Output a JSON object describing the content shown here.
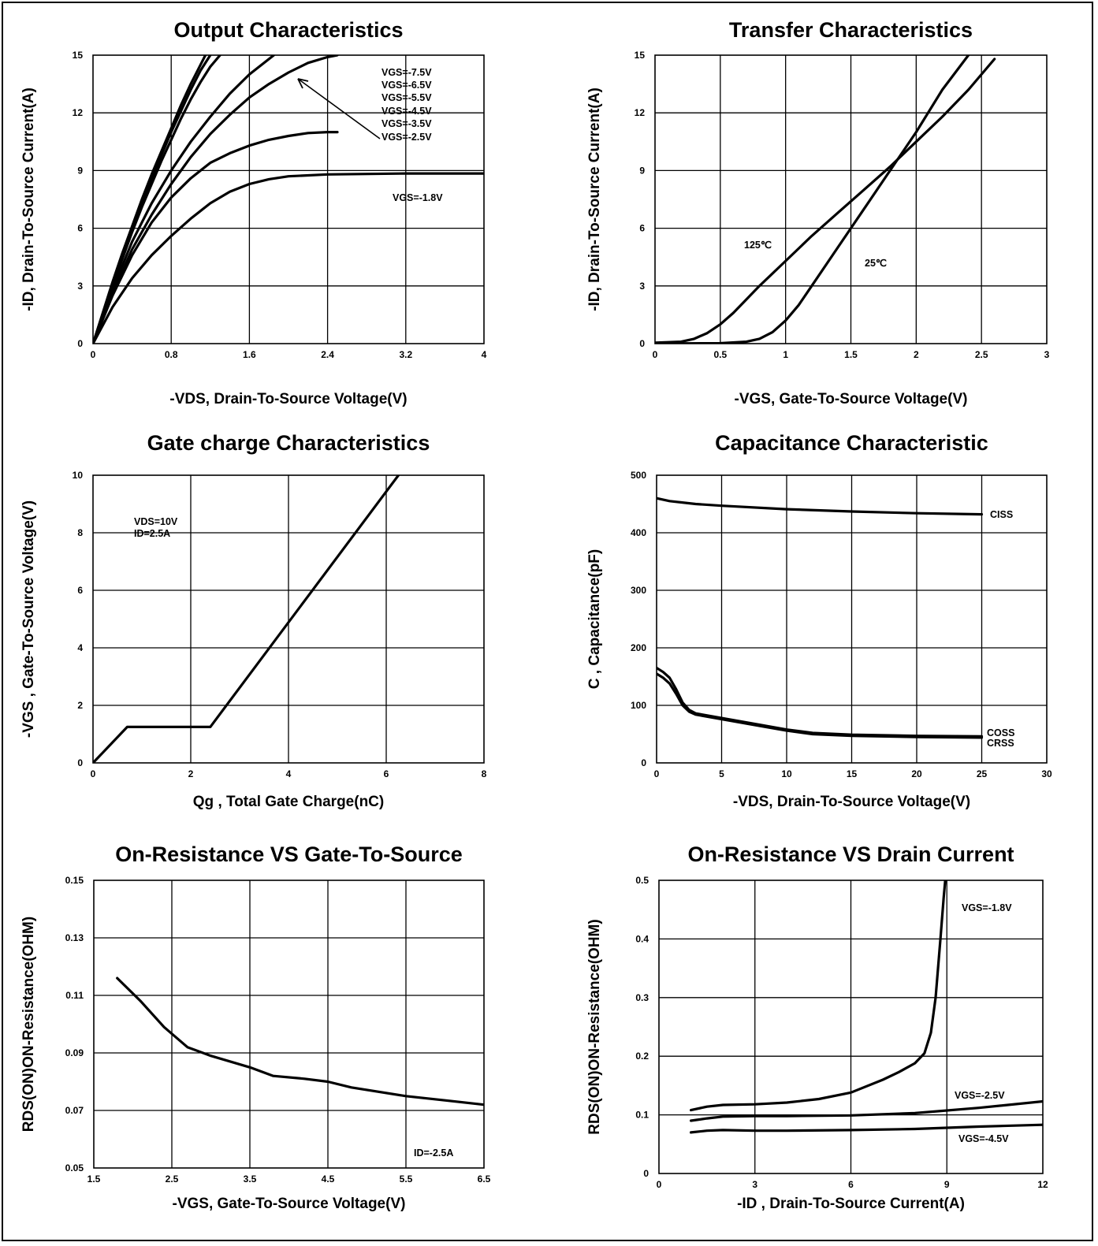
{
  "chart_data": [
    {
      "type": "line",
      "title": "Output Characteristics",
      "xlabel": "-VDS, Drain-To-Source Voltage(V)",
      "ylabel": "-ID, Drain-To-Source Current(A)",
      "xlim": [
        0,
        4
      ],
      "ylim": [
        0,
        15
      ],
      "xticks": [
        "0",
        "0.8",
        "1.6",
        "2.4",
        "3.2",
        "4"
      ],
      "yticks": [
        "0",
        "3",
        "6",
        "9",
        "12",
        "15"
      ],
      "grid": true,
      "annotations": [
        "VGS=-7.5V",
        "VGS=-6.5V",
        "VGS=-5.5V",
        "VGS=-4.5V",
        "VGS=-3.5V",
        "VGS=-2.5V",
        "VGS=-1.8V"
      ],
      "series": [
        {
          "name": "VGS=-7.5V",
          "x": [
            0,
            0.1,
            0.2,
            0.3,
            0.4,
            0.5,
            0.6,
            0.7,
            0.8,
            0.9,
            1.0,
            1.1,
            1.15
          ],
          "y": [
            0,
            1.6,
            3.2,
            4.7,
            6.1,
            7.5,
            8.8,
            10.0,
            11.2,
            12.4,
            13.5,
            14.5,
            15
          ]
        },
        {
          "name": "VGS=-6.5V",
          "x": [
            0,
            0.1,
            0.2,
            0.3,
            0.4,
            0.5,
            0.6,
            0.7,
            0.8,
            0.9,
            1.0,
            1.1,
            1.2
          ],
          "y": [
            0,
            1.55,
            3.1,
            4.6,
            6.0,
            7.3,
            8.6,
            9.8,
            11.0,
            12.1,
            13.2,
            14.2,
            15
          ]
        },
        {
          "name": "VGS=-5.5V",
          "x": [
            0,
            0.1,
            0.2,
            0.3,
            0.4,
            0.5,
            0.6,
            0.7,
            0.8,
            0.9,
            1.0,
            1.1,
            1.2,
            1.3
          ],
          "y": [
            0,
            1.5,
            3.0,
            4.4,
            5.8,
            7.1,
            8.3,
            9.5,
            10.6,
            11.7,
            12.7,
            13.6,
            14.4,
            15
          ]
        },
        {
          "name": "VGS=-4.5V",
          "x": [
            0,
            0.2,
            0.4,
            0.6,
            0.8,
            1.0,
            1.2,
            1.4,
            1.6,
            1.8,
            1.85
          ],
          "y": [
            0,
            2.8,
            5.3,
            7.3,
            9.0,
            10.5,
            11.8,
            13.0,
            14.0,
            14.8,
            15
          ]
        },
        {
          "name": "VGS=-3.5V",
          "x": [
            0,
            0.2,
            0.4,
            0.6,
            0.8,
            1.0,
            1.2,
            1.4,
            1.6,
            1.8,
            2.0,
            2.2,
            2.4,
            2.5
          ],
          "y": [
            0,
            2.6,
            4.9,
            6.7,
            8.3,
            9.7,
            10.9,
            11.9,
            12.8,
            13.5,
            14.1,
            14.6,
            14.9,
            15
          ]
        },
        {
          "name": "VGS=-2.5V",
          "x": [
            0,
            0.2,
            0.4,
            0.6,
            0.8,
            1.0,
            1.2,
            1.4,
            1.6,
            1.8,
            2.0,
            2.2,
            2.4,
            2.5
          ],
          "y": [
            0,
            2.5,
            4.6,
            6.3,
            7.6,
            8.6,
            9.4,
            9.9,
            10.3,
            10.6,
            10.8,
            10.95,
            11.0,
            11.0
          ]
        },
        {
          "name": "VGS=-1.8V",
          "x": [
            0,
            0.2,
            0.4,
            0.6,
            0.8,
            1.0,
            1.2,
            1.4,
            1.6,
            1.8,
            2.0,
            2.4,
            3.2,
            4.0
          ],
          "y": [
            0,
            1.9,
            3.4,
            4.6,
            5.6,
            6.5,
            7.3,
            7.9,
            8.3,
            8.55,
            8.7,
            8.8,
            8.85,
            8.85
          ]
        }
      ]
    },
    {
      "type": "line",
      "title": "Transfer Characteristics",
      "xlabel": "-VGS, Gate-To-Source Voltage(V)",
      "ylabel": "-ID, Drain-To-Source Current(A)",
      "xlim": [
        0,
        3
      ],
      "ylim": [
        0,
        15
      ],
      "xticks": [
        "0",
        "0.5",
        "1",
        "1.5",
        "2",
        "2.5",
        "3"
      ],
      "yticks": [
        "0",
        "3",
        "6",
        "9",
        "12",
        "15"
      ],
      "grid": true,
      "series": [
        {
          "name": "125℃",
          "x": [
            0,
            0.2,
            0.3,
            0.4,
            0.5,
            0.6,
            0.8,
            1.0,
            1.2,
            1.4,
            1.6,
            1.8,
            2.0,
            2.2,
            2.4,
            2.6
          ],
          "y": [
            0.05,
            0.1,
            0.25,
            0.55,
            1.0,
            1.6,
            3.0,
            4.3,
            5.6,
            6.8,
            8.0,
            9.2,
            10.5,
            11.8,
            13.2,
            14.8
          ]
        },
        {
          "name": "25℃",
          "x": [
            0,
            0.5,
            0.7,
            0.8,
            0.9,
            1.0,
            1.1,
            1.2,
            1.4,
            1.6,
            1.8,
            2.0,
            2.2,
            2.4
          ],
          "y": [
            0,
            0.02,
            0.1,
            0.25,
            0.6,
            1.2,
            2.0,
            3.0,
            5.0,
            7.0,
            9.0,
            11.0,
            13.2,
            15.0
          ]
        }
      ],
      "labels": [
        "125℃",
        "25℃"
      ]
    },
    {
      "type": "line",
      "title": "Gate charge Characteristics",
      "xlabel": "Qg , Total Gate Charge(nC)",
      "ylabel": "-VGS , Gate-To-Source Voltage(V)",
      "xlim": [
        0,
        8
      ],
      "ylim": [
        0,
        10
      ],
      "xticks": [
        "0",
        "2",
        "4",
        "6",
        "8"
      ],
      "yticks": [
        "0",
        "2",
        "4",
        "6",
        "8",
        "10"
      ],
      "grid": true,
      "annotations": [
        "VDS=10V",
        "ID=2.5A"
      ],
      "series": [
        {
          "name": "",
          "x": [
            0,
            0.7,
            2.4,
            6.25
          ],
          "y": [
            0,
            1.25,
            1.25,
            10
          ]
        }
      ]
    },
    {
      "type": "line",
      "title": "Capacitance Characteristic",
      "xlabel": "-VDS, Drain-To-Source Voltage(V)",
      "ylabel": "C , Capacitance(pF)",
      "xlim": [
        0,
        30
      ],
      "ylim": [
        0,
        500
      ],
      "xticks": [
        "0",
        "5",
        "10",
        "15",
        "20",
        "25",
        "30"
      ],
      "yticks": [
        "0",
        "100",
        "200",
        "300",
        "400",
        "500"
      ],
      "grid": true,
      "series": [
        {
          "name": "CISS",
          "x": [
            0,
            1,
            3,
            5,
            10,
            15,
            20,
            25
          ],
          "y": [
            460,
            455,
            450,
            447,
            441,
            437,
            434,
            432
          ]
        },
        {
          "name": "COSS",
          "x": [
            0,
            0.5,
            1,
            1.5,
            2,
            2.5,
            3,
            5,
            8,
            10,
            12,
            15,
            20,
            25
          ],
          "y": [
            165,
            158,
            148,
            128,
            105,
            92,
            86,
            78,
            66,
            58,
            52,
            49,
            47,
            46
          ]
        },
        {
          "name": "CRSS",
          "x": [
            0,
            0.5,
            1,
            1.5,
            2,
            2.5,
            3,
            5,
            8,
            10,
            12,
            15,
            20,
            25
          ],
          "y": [
            155,
            148,
            138,
            120,
            100,
            89,
            84,
            76,
            64,
            56,
            50,
            47,
            45,
            44
          ]
        }
      ]
    },
    {
      "type": "line",
      "title": "On-Resistance VS Gate-To-Source",
      "xlabel": "-VGS, Gate-To-Source Voltage(V)",
      "ylabel": "RDS(ON)ON-Resistance(OHM)",
      "xlim": [
        1.5,
        6.5
      ],
      "ylim": [
        0.05,
        0.15
      ],
      "xticks": [
        "1.5",
        "2.5",
        "3.5",
        "4.5",
        "5.5",
        "6.5"
      ],
      "yticks": [
        "0.05",
        "0.07",
        "0.09",
        "0.11",
        "0.13",
        "0.15"
      ],
      "grid": true,
      "annotations": [
        "ID=-2.5A"
      ],
      "series": [
        {
          "name": "",
          "x": [
            1.8,
            2.1,
            2.4,
            2.7,
            3.0,
            3.5,
            3.8,
            4.2,
            4.5,
            4.8,
            5.5,
            6.0,
            6.5
          ],
          "y": [
            0.116,
            0.108,
            0.099,
            0.092,
            0.089,
            0.085,
            0.082,
            0.081,
            0.08,
            0.078,
            0.075,
            0.0735,
            0.072
          ]
        }
      ]
    },
    {
      "type": "line",
      "title": "On-Resistance VS Drain Current",
      "xlabel": "-ID , Drain-To-Source Current(A)",
      "ylabel": "RDS(ON)ON-Resistance(OHM)",
      "xlim": [
        0,
        12
      ],
      "ylim": [
        0,
        0.5
      ],
      "xticks": [
        "0",
        "3",
        "6",
        "9",
        "12"
      ],
      "yticks": [
        "0",
        "0.1",
        "0.2",
        "0.3",
        "0.4",
        "0.5"
      ],
      "grid": true,
      "series": [
        {
          "name": "VGS=-1.8V",
          "x": [
            1,
            1.5,
            2,
            3,
            4,
            5,
            6,
            7,
            7.5,
            8,
            8.3,
            8.5,
            8.65,
            8.8,
            8.9,
            8.95
          ],
          "y": [
            0.108,
            0.114,
            0.117,
            0.118,
            0.121,
            0.127,
            0.138,
            0.16,
            0.173,
            0.188,
            0.205,
            0.24,
            0.3,
            0.4,
            0.47,
            0.5
          ]
        },
        {
          "name": "VGS=-2.5V",
          "x": [
            1,
            1.5,
            2,
            3,
            4,
            6,
            8,
            10,
            12
          ],
          "y": [
            0.09,
            0.094,
            0.097,
            0.098,
            0.098,
            0.099,
            0.103,
            0.112,
            0.123
          ]
        },
        {
          "name": "VGS=-4.5V",
          "x": [
            1,
            1.5,
            2,
            3,
            4,
            6,
            8,
            10,
            12
          ],
          "y": [
            0.07,
            0.073,
            0.074,
            0.073,
            0.073,
            0.074,
            0.076,
            0.08,
            0.083
          ]
        }
      ]
    }
  ]
}
